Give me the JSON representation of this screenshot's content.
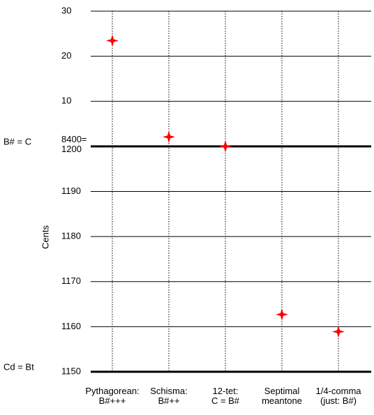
{
  "chart_data": {
    "type": "scatter",
    "ylabel": "Cents",
    "categories": [
      "Pythagorean:\nB#+++",
      "Schisma:\nB#++",
      "12-tet:\nC = B#",
      "Septimal\nmeantone",
      "1/4-comma\n(just: B#)"
    ],
    "values": [
      1223.46,
      1202.1,
      1200,
      1162.7,
      1158.9
    ],
    "color": "#ff0000",
    "ylim": [
      1150,
      1230
    ],
    "yticks": [
      1150,
      1160,
      1170,
      1180,
      1190,
      {
        "value": 1200,
        "label": "8400=\n1200"
      },
      {
        "value": 1210,
        "label": "10"
      },
      {
        "value": 1220,
        "label": "20"
      },
      {
        "value": 1230,
        "label": "30"
      }
    ],
    "grid": true,
    "annotations": [
      {
        "text": "B# = C",
        "value": 1200
      },
      {
        "text": "Cd = Bt",
        "value": 1150
      }
    ]
  }
}
